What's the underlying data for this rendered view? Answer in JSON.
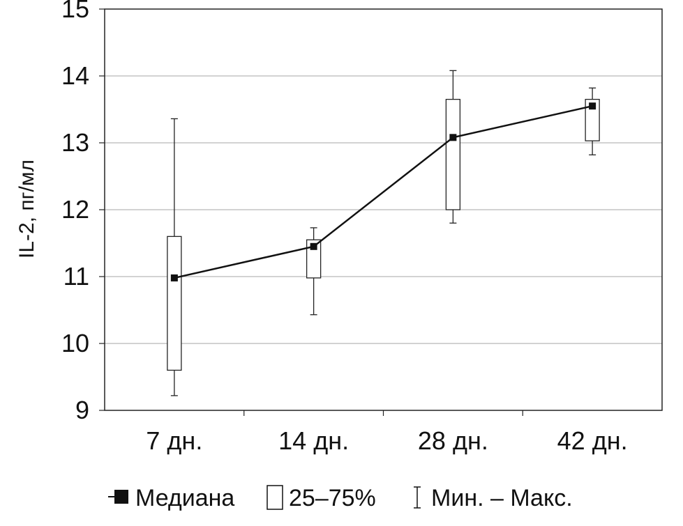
{
  "chart_data": {
    "type": "box",
    "ylabel": "IL-2, пг/мл",
    "xlabel": "",
    "ylim": [
      9,
      15
    ],
    "yticks": [
      "9",
      "10",
      "11",
      "12",
      "13",
      "14",
      "15"
    ],
    "grid": true,
    "categories": [
      "7 дн.",
      "14 дн.",
      "28 дн.",
      "42 дн."
    ],
    "series": [
      {
        "name": "Медиана",
        "values": [
          10.98,
          11.45,
          13.08,
          13.55
        ]
      }
    ],
    "q1": [
      9.6,
      10.98,
      12.0,
      13.03
    ],
    "q3": [
      11.6,
      11.55,
      13.65,
      13.65
    ],
    "min": [
      9.22,
      10.43,
      11.8,
      12.82
    ],
    "max": [
      13.36,
      11.73,
      14.08,
      13.82
    ],
    "legend": {
      "placement": "bottom",
      "median": "Медиана",
      "box": "25–75%",
      "whisker": "Мин. – Макс."
    }
  }
}
